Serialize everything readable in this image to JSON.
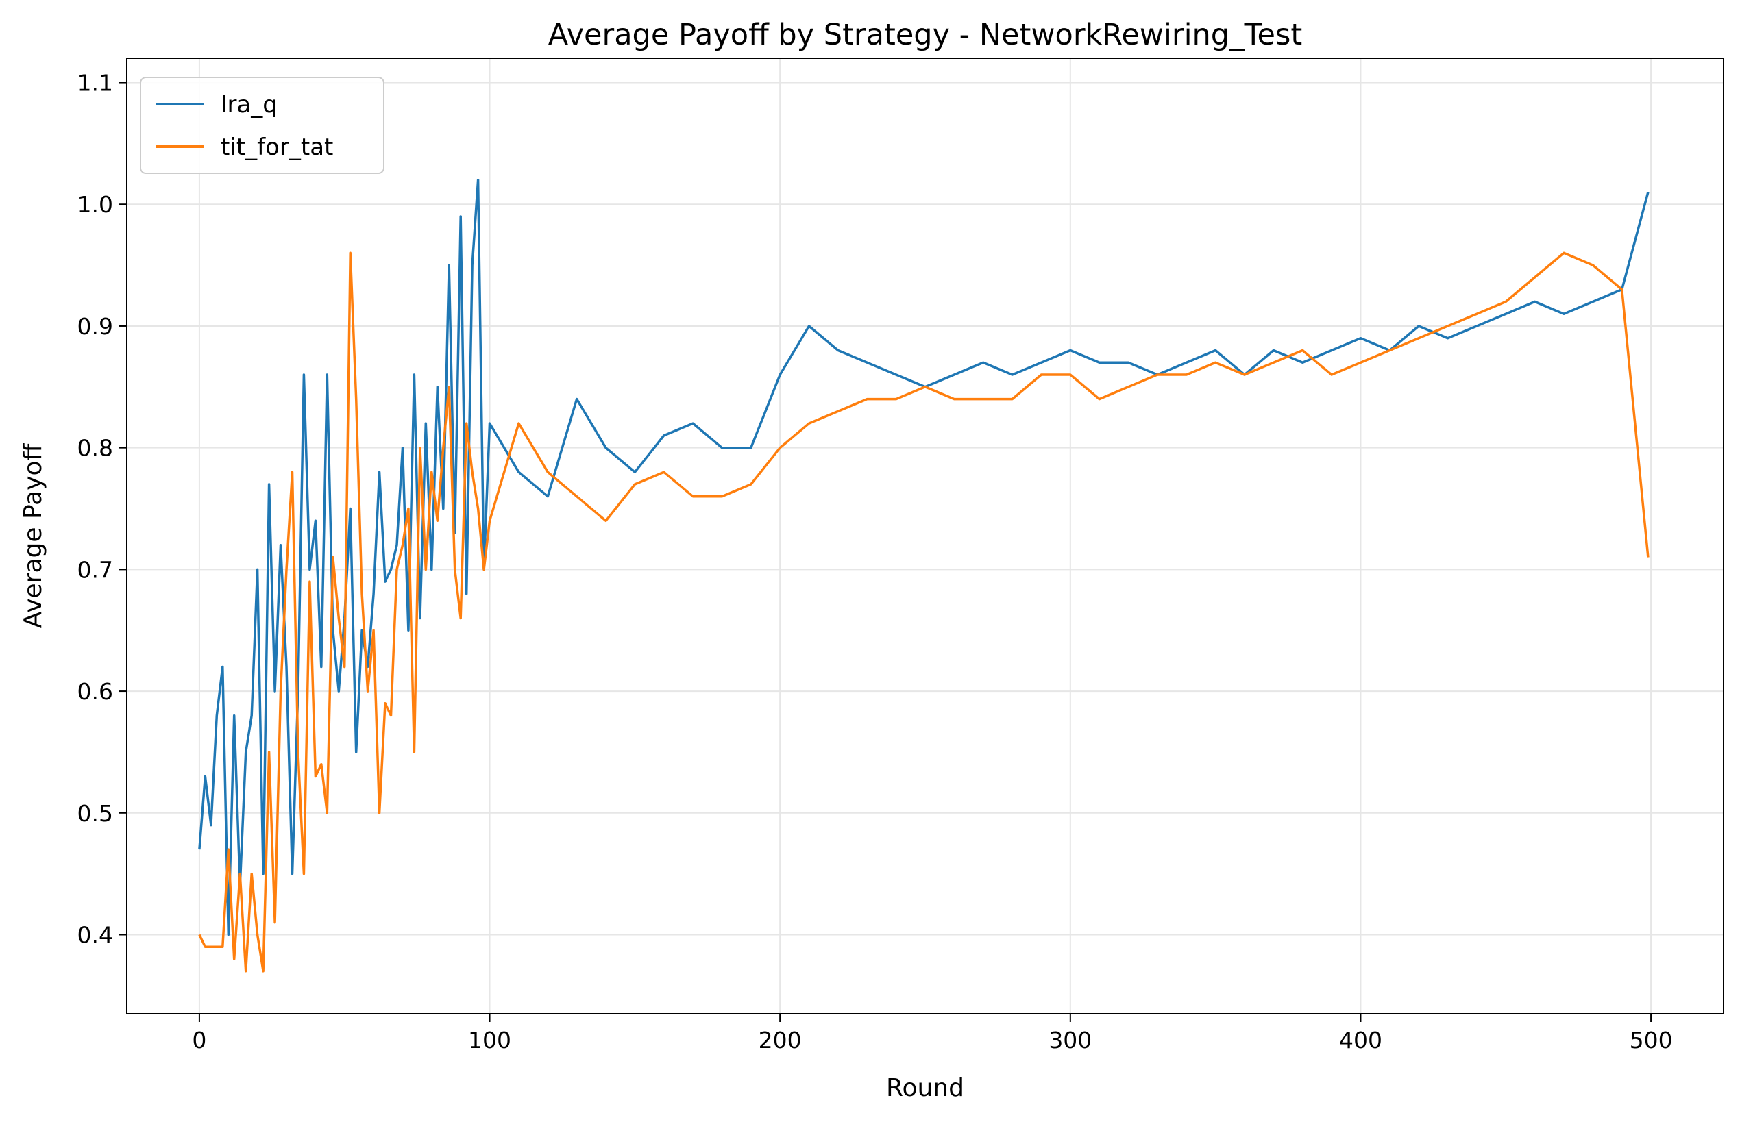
{
  "chart_data": {
    "type": "line",
    "title": "Average Payoff by Strategy - NetworkRewiring_Test",
    "xlabel": "Round",
    "ylabel": "Average Payoff",
    "xlim": [
      -25,
      525
    ],
    "ylim": [
      0.335,
      1.12
    ],
    "xticks": [
      0,
      100,
      200,
      300,
      400,
      500
    ],
    "yticks": [
      0.4,
      0.5,
      0.6,
      0.7,
      0.8,
      0.9,
      1.0,
      1.1
    ],
    "ytick_labels": [
      "0.4",
      "0.5",
      "0.6",
      "0.7",
      "0.8",
      "0.9",
      "1.0",
      "1.1"
    ],
    "grid": true,
    "legend": "top-left",
    "series": [
      {
        "name": "lra_q",
        "color": "#1f77b4",
        "x": [
          0,
          2,
          4,
          6,
          8,
          10,
          12,
          14,
          16,
          18,
          20,
          22,
          24,
          26,
          28,
          30,
          32,
          34,
          36,
          38,
          40,
          42,
          44,
          46,
          48,
          50,
          52,
          54,
          56,
          58,
          60,
          62,
          64,
          66,
          68,
          70,
          72,
          74,
          76,
          78,
          80,
          82,
          84,
          86,
          88,
          90,
          92,
          94,
          96,
          98,
          100,
          110,
          120,
          130,
          140,
          150,
          160,
          170,
          180,
          190,
          200,
          210,
          220,
          230,
          240,
          250,
          260,
          270,
          280,
          290,
          300,
          310,
          320,
          330,
          340,
          350,
          360,
          370,
          380,
          390,
          400,
          410,
          420,
          430,
          440,
          450,
          460,
          470,
          480,
          490,
          499
        ],
        "values": [
          0.47,
          0.53,
          0.49,
          0.58,
          0.62,
          0.4,
          0.58,
          0.44,
          0.55,
          0.58,
          0.7,
          0.45,
          0.77,
          0.6,
          0.72,
          0.62,
          0.45,
          0.6,
          0.86,
          0.7,
          0.74,
          0.62,
          0.86,
          0.65,
          0.6,
          0.66,
          0.75,
          0.55,
          0.65,
          0.62,
          0.68,
          0.78,
          0.69,
          0.7,
          0.72,
          0.8,
          0.65,
          0.86,
          0.66,
          0.82,
          0.7,
          0.85,
          0.75,
          0.95,
          0.73,
          0.99,
          0.68,
          0.95,
          1.02,
          0.7,
          0.82,
          0.78,
          0.76,
          0.84,
          0.8,
          0.78,
          0.81,
          0.82,
          0.8,
          0.8,
          0.86,
          0.9,
          0.88,
          0.87,
          0.86,
          0.85,
          0.86,
          0.87,
          0.86,
          0.87,
          0.88,
          0.87,
          0.87,
          0.86,
          0.87,
          0.88,
          0.86,
          0.88,
          0.87,
          0.88,
          0.89,
          0.88,
          0.9,
          0.89,
          0.9,
          0.91,
          0.92,
          0.91,
          0.92,
          0.93,
          1.01
        ]
      },
      {
        "name": "tit_for_tat",
        "color": "#ff7f0e",
        "x": [
          0,
          2,
          4,
          6,
          8,
          10,
          12,
          14,
          16,
          18,
          20,
          22,
          24,
          26,
          28,
          30,
          32,
          34,
          36,
          38,
          40,
          42,
          44,
          46,
          48,
          50,
          52,
          54,
          56,
          58,
          60,
          62,
          64,
          66,
          68,
          70,
          72,
          74,
          76,
          78,
          80,
          82,
          84,
          86,
          88,
          90,
          92,
          94,
          96,
          98,
          100,
          110,
          120,
          130,
          140,
          150,
          160,
          170,
          180,
          190,
          200,
          210,
          220,
          230,
          240,
          250,
          260,
          270,
          280,
          290,
          300,
          310,
          320,
          330,
          340,
          350,
          360,
          370,
          380,
          390,
          400,
          410,
          420,
          430,
          440,
          450,
          460,
          470,
          480,
          490,
          499
        ],
        "values": [
          0.4,
          0.39,
          0.39,
          0.39,
          0.39,
          0.47,
          0.38,
          0.45,
          0.37,
          0.45,
          0.4,
          0.37,
          0.55,
          0.41,
          0.6,
          0.7,
          0.78,
          0.55,
          0.45,
          0.69,
          0.53,
          0.54,
          0.5,
          0.71,
          0.66,
          0.62,
          0.96,
          0.84,
          0.68,
          0.6,
          0.65,
          0.5,
          0.59,
          0.58,
          0.7,
          0.72,
          0.75,
          0.55,
          0.8,
          0.7,
          0.78,
          0.74,
          0.8,
          0.85,
          0.7,
          0.66,
          0.82,
          0.78,
          0.75,
          0.7,
          0.74,
          0.82,
          0.78,
          0.76,
          0.74,
          0.77,
          0.78,
          0.76,
          0.76,
          0.77,
          0.8,
          0.82,
          0.83,
          0.84,
          0.84,
          0.85,
          0.84,
          0.84,
          0.84,
          0.86,
          0.86,
          0.84,
          0.85,
          0.86,
          0.86,
          0.87,
          0.86,
          0.87,
          0.88,
          0.86,
          0.87,
          0.88,
          0.89,
          0.9,
          0.91,
          0.92,
          0.94,
          0.96,
          0.95,
          0.93,
          0.71
        ]
      }
    ]
  }
}
